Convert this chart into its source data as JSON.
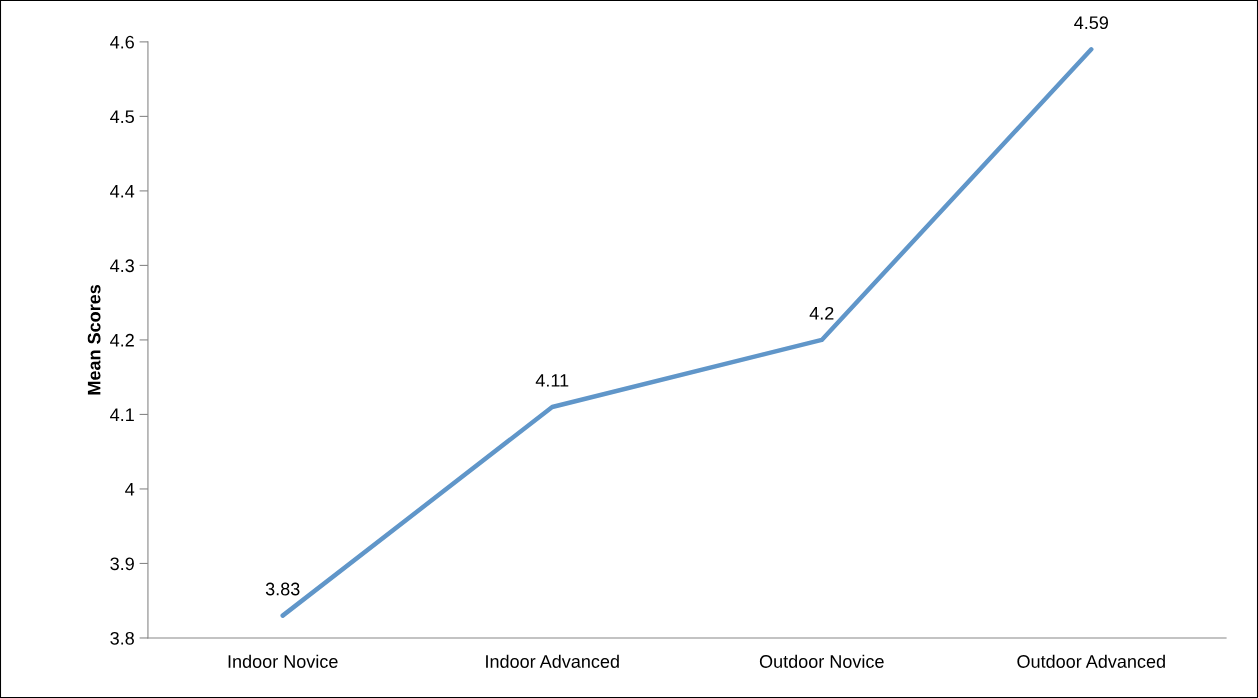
{
  "chart_data": {
    "type": "line",
    "ylabel": "Mean Scores",
    "categories": [
      "Indoor Novice",
      "Indoor Advanced",
      "Outdoor Novice",
      "Outdoor Advanced"
    ],
    "series": [
      {
        "color": "#6096c9",
        "values": [
          3.83,
          4.11,
          4.2,
          4.59
        ]
      }
    ],
    "ylim": [
      3.8,
      4.6
    ],
    "yticks": [
      3.8,
      3.9,
      {
        "value": 4.0,
        "label": "4"
      },
      4.1,
      4.2,
      4.3,
      4.4,
      4.5,
      4.6
    ],
    "data_labels": true,
    "grid": false,
    "legend": false,
    "marker": "none",
    "line_style": "solid"
  }
}
